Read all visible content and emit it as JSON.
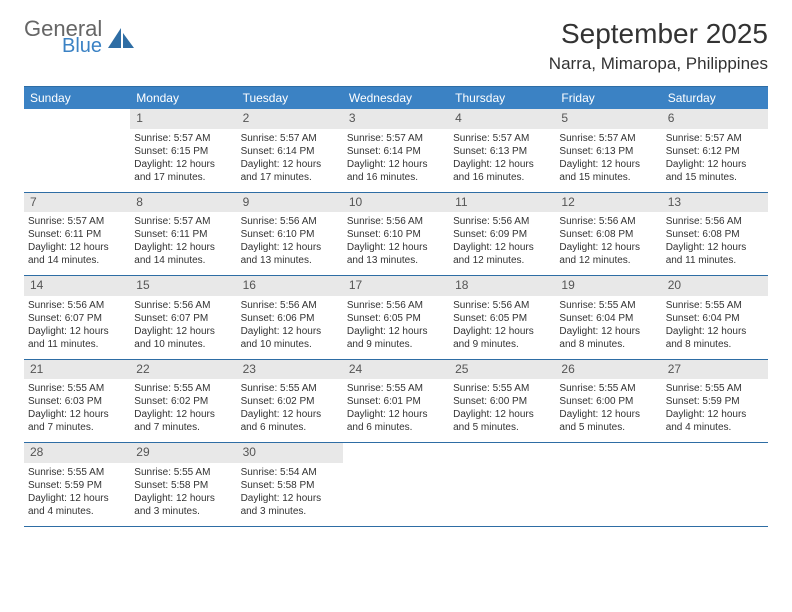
{
  "logo": {
    "general": "General",
    "blue": "Blue"
  },
  "title": "September 2025",
  "location": "Narra, Mimaropa, Philippines",
  "colors": {
    "header_bg": "#3b82c4",
    "header_text": "#ffffff",
    "daynum_bg": "#e8e8e8",
    "rule": "#2e6da4",
    "text": "#333333",
    "logo_gray": "#666666",
    "logo_blue": "#3b82c4",
    "page_bg": "#ffffff"
  },
  "typography": {
    "title_fontsize": 28,
    "location_fontsize": 17,
    "weekday_fontsize": 12,
    "daynum_fontsize": 12,
    "body_fontsize": 10
  },
  "weekdays": [
    "Sunday",
    "Monday",
    "Tuesday",
    "Wednesday",
    "Thursday",
    "Friday",
    "Saturday"
  ],
  "weeks": [
    [
      null,
      {
        "n": "1",
        "sr": "Sunrise: 5:57 AM",
        "ss": "Sunset: 6:15 PM",
        "d1": "Daylight: 12 hours",
        "d2": "and 17 minutes."
      },
      {
        "n": "2",
        "sr": "Sunrise: 5:57 AM",
        "ss": "Sunset: 6:14 PM",
        "d1": "Daylight: 12 hours",
        "d2": "and 17 minutes."
      },
      {
        "n": "3",
        "sr": "Sunrise: 5:57 AM",
        "ss": "Sunset: 6:14 PM",
        "d1": "Daylight: 12 hours",
        "d2": "and 16 minutes."
      },
      {
        "n": "4",
        "sr": "Sunrise: 5:57 AM",
        "ss": "Sunset: 6:13 PM",
        "d1": "Daylight: 12 hours",
        "d2": "and 16 minutes."
      },
      {
        "n": "5",
        "sr": "Sunrise: 5:57 AM",
        "ss": "Sunset: 6:13 PM",
        "d1": "Daylight: 12 hours",
        "d2": "and 15 minutes."
      },
      {
        "n": "6",
        "sr": "Sunrise: 5:57 AM",
        "ss": "Sunset: 6:12 PM",
        "d1": "Daylight: 12 hours",
        "d2": "and 15 minutes."
      }
    ],
    [
      {
        "n": "7",
        "sr": "Sunrise: 5:57 AM",
        "ss": "Sunset: 6:11 PM",
        "d1": "Daylight: 12 hours",
        "d2": "and 14 minutes."
      },
      {
        "n": "8",
        "sr": "Sunrise: 5:57 AM",
        "ss": "Sunset: 6:11 PM",
        "d1": "Daylight: 12 hours",
        "d2": "and 14 minutes."
      },
      {
        "n": "9",
        "sr": "Sunrise: 5:56 AM",
        "ss": "Sunset: 6:10 PM",
        "d1": "Daylight: 12 hours",
        "d2": "and 13 minutes."
      },
      {
        "n": "10",
        "sr": "Sunrise: 5:56 AM",
        "ss": "Sunset: 6:10 PM",
        "d1": "Daylight: 12 hours",
        "d2": "and 13 minutes."
      },
      {
        "n": "11",
        "sr": "Sunrise: 5:56 AM",
        "ss": "Sunset: 6:09 PM",
        "d1": "Daylight: 12 hours",
        "d2": "and 12 minutes."
      },
      {
        "n": "12",
        "sr": "Sunrise: 5:56 AM",
        "ss": "Sunset: 6:08 PM",
        "d1": "Daylight: 12 hours",
        "d2": "and 12 minutes."
      },
      {
        "n": "13",
        "sr": "Sunrise: 5:56 AM",
        "ss": "Sunset: 6:08 PM",
        "d1": "Daylight: 12 hours",
        "d2": "and 11 minutes."
      }
    ],
    [
      {
        "n": "14",
        "sr": "Sunrise: 5:56 AM",
        "ss": "Sunset: 6:07 PM",
        "d1": "Daylight: 12 hours",
        "d2": "and 11 minutes."
      },
      {
        "n": "15",
        "sr": "Sunrise: 5:56 AM",
        "ss": "Sunset: 6:07 PM",
        "d1": "Daylight: 12 hours",
        "d2": "and 10 minutes."
      },
      {
        "n": "16",
        "sr": "Sunrise: 5:56 AM",
        "ss": "Sunset: 6:06 PM",
        "d1": "Daylight: 12 hours",
        "d2": "and 10 minutes."
      },
      {
        "n": "17",
        "sr": "Sunrise: 5:56 AM",
        "ss": "Sunset: 6:05 PM",
        "d1": "Daylight: 12 hours",
        "d2": "and 9 minutes."
      },
      {
        "n": "18",
        "sr": "Sunrise: 5:56 AM",
        "ss": "Sunset: 6:05 PM",
        "d1": "Daylight: 12 hours",
        "d2": "and 9 minutes."
      },
      {
        "n": "19",
        "sr": "Sunrise: 5:55 AM",
        "ss": "Sunset: 6:04 PM",
        "d1": "Daylight: 12 hours",
        "d2": "and 8 minutes."
      },
      {
        "n": "20",
        "sr": "Sunrise: 5:55 AM",
        "ss": "Sunset: 6:04 PM",
        "d1": "Daylight: 12 hours",
        "d2": "and 8 minutes."
      }
    ],
    [
      {
        "n": "21",
        "sr": "Sunrise: 5:55 AM",
        "ss": "Sunset: 6:03 PM",
        "d1": "Daylight: 12 hours",
        "d2": "and 7 minutes."
      },
      {
        "n": "22",
        "sr": "Sunrise: 5:55 AM",
        "ss": "Sunset: 6:02 PM",
        "d1": "Daylight: 12 hours",
        "d2": "and 7 minutes."
      },
      {
        "n": "23",
        "sr": "Sunrise: 5:55 AM",
        "ss": "Sunset: 6:02 PM",
        "d1": "Daylight: 12 hours",
        "d2": "and 6 minutes."
      },
      {
        "n": "24",
        "sr": "Sunrise: 5:55 AM",
        "ss": "Sunset: 6:01 PM",
        "d1": "Daylight: 12 hours",
        "d2": "and 6 minutes."
      },
      {
        "n": "25",
        "sr": "Sunrise: 5:55 AM",
        "ss": "Sunset: 6:00 PM",
        "d1": "Daylight: 12 hours",
        "d2": "and 5 minutes."
      },
      {
        "n": "26",
        "sr": "Sunrise: 5:55 AM",
        "ss": "Sunset: 6:00 PM",
        "d1": "Daylight: 12 hours",
        "d2": "and 5 minutes."
      },
      {
        "n": "27",
        "sr": "Sunrise: 5:55 AM",
        "ss": "Sunset: 5:59 PM",
        "d1": "Daylight: 12 hours",
        "d2": "and 4 minutes."
      }
    ],
    [
      {
        "n": "28",
        "sr": "Sunrise: 5:55 AM",
        "ss": "Sunset: 5:59 PM",
        "d1": "Daylight: 12 hours",
        "d2": "and 4 minutes."
      },
      {
        "n": "29",
        "sr": "Sunrise: 5:55 AM",
        "ss": "Sunset: 5:58 PM",
        "d1": "Daylight: 12 hours",
        "d2": "and 3 minutes."
      },
      {
        "n": "30",
        "sr": "Sunrise: 5:54 AM",
        "ss": "Sunset: 5:58 PM",
        "d1": "Daylight: 12 hours",
        "d2": "and 3 minutes."
      },
      null,
      null,
      null,
      null
    ]
  ]
}
